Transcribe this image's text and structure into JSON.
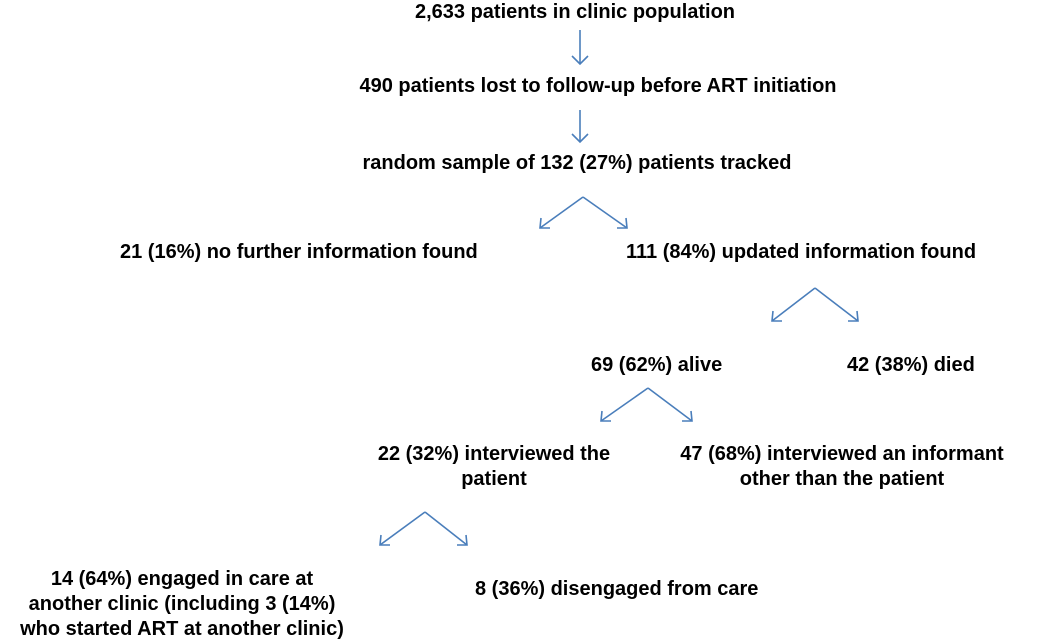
{
  "nodes": {
    "clinic_population": "2,633 patients in clinic population",
    "lost_to_followup": "490 patients lost to follow-up before ART initiation",
    "random_sample": "random sample of 132 (27%) patients tracked",
    "no_info": "21 (16%) no further information found",
    "updated_info": "111 (84%) updated information found",
    "alive": "69 (62%) alive",
    "died": "42 (38%) died",
    "interviewed_patient": [
      "22 (32%) interviewed the",
      "patient"
    ],
    "interviewed_informant": [
      "47 (68%) interviewed an informant",
      "other than the patient"
    ],
    "engaged_care": [
      "14 (64%) engaged in care at",
      "another clinic (including 3 (14%)",
      "who started ART at another clinic)"
    ],
    "disengaged_care": "8 (36%) disengaged from care"
  }
}
